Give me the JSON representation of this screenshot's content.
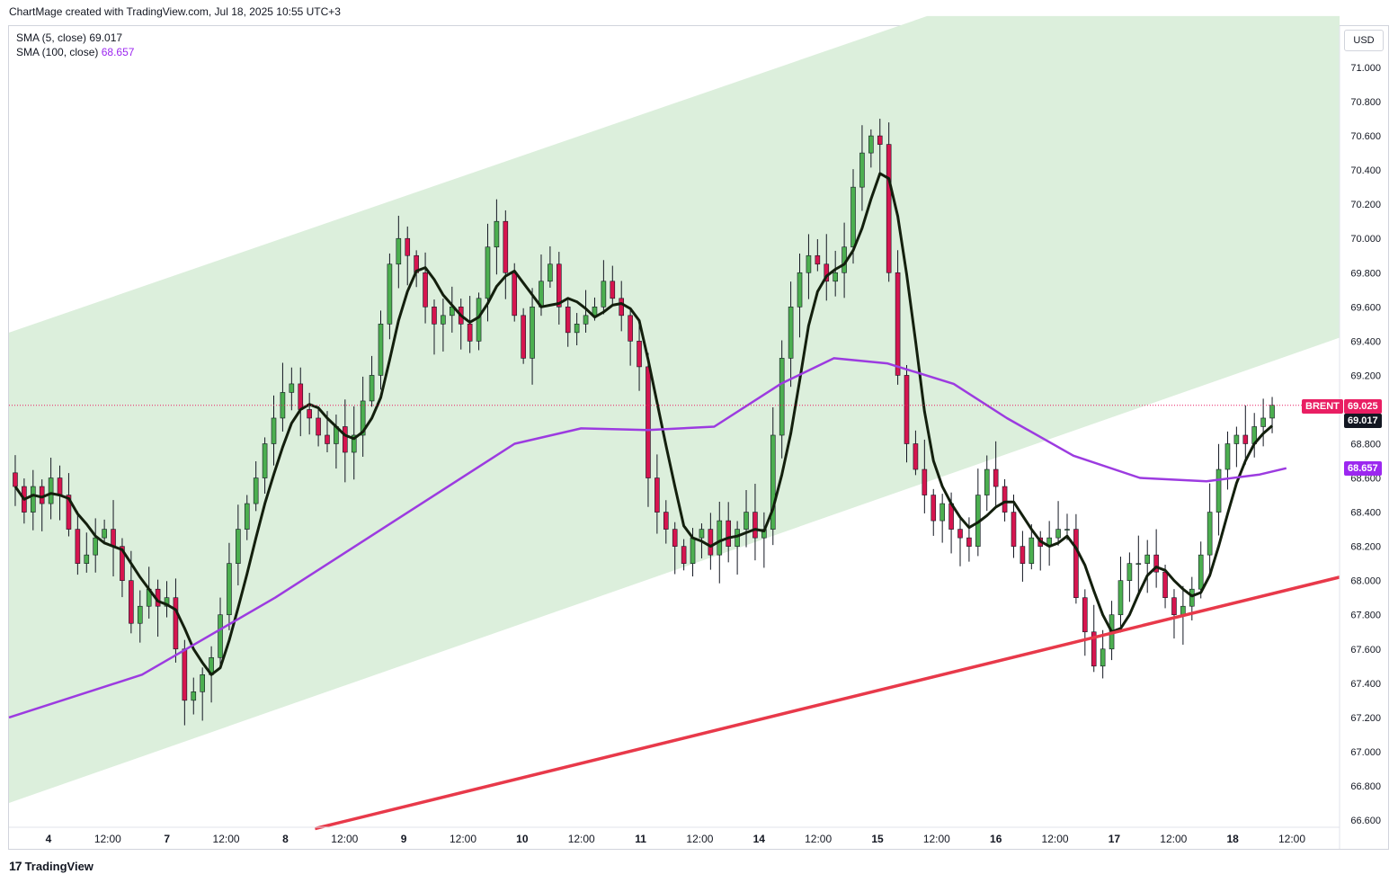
{
  "header": {
    "attribution": "ChartMage created with TradingView.com, Jul 18, 2025 10:55 UTC+3"
  },
  "legend": {
    "sma5_label": "SMA (5, close)",
    "sma5_value": "69.017",
    "sma100_label": "SMA (100, close)",
    "sma100_value": "68.657"
  },
  "footer": {
    "brand": "TradingView",
    "logo": "17"
  },
  "price_axis": {
    "currency": "USD"
  },
  "tags": {
    "symbol": "BRENT",
    "last_price": "69.025",
    "sma5": "69.017",
    "sma100": "68.657"
  },
  "colors": {
    "up": "#4caf50",
    "down": "#d6154f",
    "sma5": "#131f0d",
    "sma100": "#9c3be0",
    "channel_fill": "#dcefdc",
    "trendline": "#e8394a",
    "last_price_tag": "#e91e63"
  },
  "chart_data": {
    "type": "candlestick",
    "symbol": "BRENT",
    "y_ticks": [
      "71.000",
      "70.800",
      "70.600",
      "70.400",
      "70.200",
      "70.000",
      "69.800",
      "69.600",
      "69.400",
      "69.200",
      "68.800",
      "68.600",
      "68.400",
      "68.200",
      "68.000",
      "67.800",
      "67.600",
      "67.400",
      "67.200",
      "67.000",
      "66.800",
      "66.600"
    ],
    "x_ticks": [
      "4",
      "12:00",
      "7",
      "12:00",
      "8",
      "12:00",
      "9",
      "12:00",
      "10",
      "12:00",
      "11",
      "12:00",
      "14",
      "12:00",
      "15",
      "12:00",
      "16",
      "12:00",
      "17",
      "12:00",
      "18",
      "12:00"
    ],
    "y_range": [
      66.55,
      71.25
    ],
    "last_price": 69.025,
    "closes": [
      68.55,
      68.4,
      68.55,
      68.45,
      68.6,
      68.5,
      68.3,
      68.1,
      68.15,
      68.25,
      68.3,
      68.2,
      68.0,
      67.75,
      67.85,
      67.95,
      67.85,
      67.9,
      67.6,
      67.3,
      67.35,
      67.45,
      67.55,
      67.8,
      68.1,
      68.3,
      68.45,
      68.6,
      68.8,
      68.95,
      69.1,
      69.15,
      69.0,
      68.95,
      68.85,
      68.8,
      68.9,
      68.75,
      68.85,
      69.05,
      69.2,
      69.5,
      69.85,
      70.0,
      69.9,
      69.8,
      69.6,
      69.5,
      69.55,
      69.6,
      69.5,
      69.4,
      69.65,
      69.95,
      70.1,
      69.8,
      69.55,
      69.3,
      69.6,
      69.75,
      69.85,
      69.6,
      69.45,
      69.5,
      69.55,
      69.6,
      69.75,
      69.65,
      69.55,
      69.4,
      69.25,
      68.6,
      68.4,
      68.3,
      68.2,
      68.1,
      68.25,
      68.3,
      68.15,
      68.35,
      68.2,
      68.3,
      68.4,
      68.25,
      68.3,
      68.85,
      69.3,
      69.6,
      69.8,
      69.9,
      69.85,
      69.75,
      69.8,
      69.95,
      70.3,
      70.5,
      70.6,
      70.55,
      69.8,
      69.2,
      68.8,
      68.65,
      68.5,
      68.35,
      68.45,
      68.3,
      68.25,
      68.2,
      68.5,
      68.65,
      68.55,
      68.4,
      68.2,
      68.1,
      68.25,
      68.2,
      68.25,
      68.3,
      68.3,
      67.9,
      67.7,
      67.5,
      67.6,
      67.8,
      68.0,
      68.1,
      68.1,
      68.15,
      68.05,
      67.9,
      67.8,
      67.85,
      67.95,
      68.15,
      68.4,
      68.65,
      68.8,
      68.85,
      68.8,
      68.9,
      68.95,
      69.025
    ],
    "sma100_points": [
      [
        0,
        67.2
      ],
      [
        0.1,
        67.45
      ],
      [
        0.2,
        67.9
      ],
      [
        0.3,
        68.4
      ],
      [
        0.38,
        68.8
      ],
      [
        0.43,
        68.89
      ],
      [
        0.48,
        68.88
      ],
      [
        0.53,
        68.9
      ],
      [
        0.58,
        69.15
      ],
      [
        0.62,
        69.3
      ],
      [
        0.66,
        69.27
      ],
      [
        0.71,
        69.15
      ],
      [
        0.75,
        68.95
      ],
      [
        0.8,
        68.73
      ],
      [
        0.85,
        68.6
      ],
      [
        0.9,
        68.58
      ],
      [
        0.94,
        68.62
      ],
      [
        0.96,
        68.657
      ]
    ],
    "channel": {
      "upper": [
        [
          0,
          69.45
        ],
        [
          0.7,
          71.3
        ],
        [
          1.0,
          71.3
        ],
        [
          1.0,
          69.45
        ]
      ],
      "lower": [
        [
          0,
          66.7
        ],
        [
          1.0,
          68.92
        ]
      ]
    },
    "trendline": [
      [
        0.23,
        66.55
      ],
      [
        1.0,
        68.02
      ]
    ]
  }
}
